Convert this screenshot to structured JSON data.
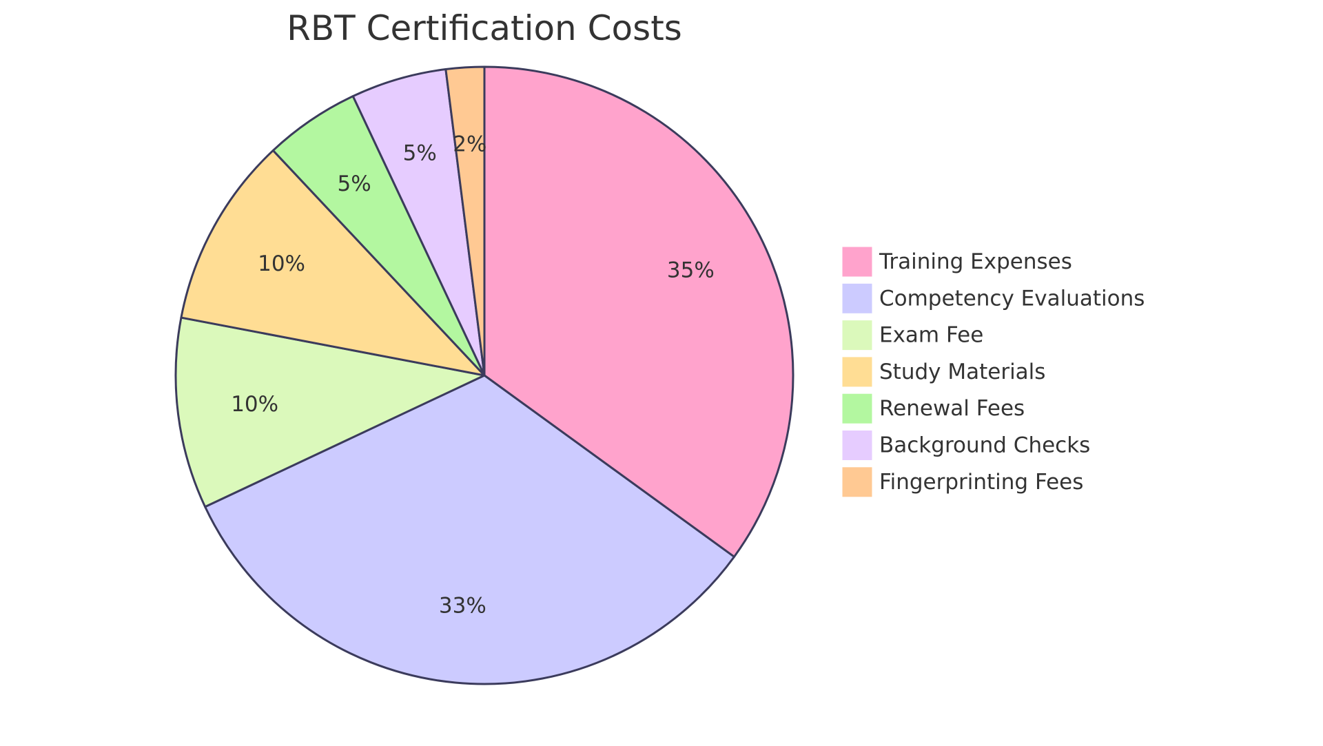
{
  "chart_data": {
    "type": "pie",
    "title": "RBT Certification Costs",
    "categories": [
      "Training Expenses",
      "Competency Evaluations",
      "Exam Fee",
      "Study Materials",
      "Renewal Fees",
      "Background Checks",
      "Fingerprinting Fees"
    ],
    "values": [
      35,
      33,
      10,
      10,
      5,
      5,
      2
    ],
    "value_labels": [
      "35%",
      "33%",
      "10%",
      "10%",
      "5%",
      "5%",
      "2%"
    ],
    "colors": [
      "#ffa3cc",
      "#cccbff",
      "#dbf9bb",
      "#ffdd94",
      "#b3f7a0",
      "#e6ccff",
      "#ffc993"
    ],
    "stroke_color": "#3b3b5c",
    "legend_position": "right",
    "start_angle": "top",
    "direction": "clockwise"
  }
}
